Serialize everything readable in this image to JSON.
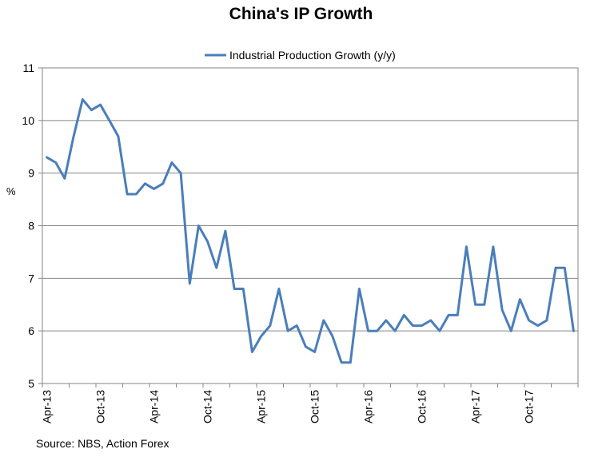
{
  "chart_data": {
    "type": "line",
    "title": "China's IP Growth",
    "xlabel": "",
    "ylabel": "%",
    "ylim": [
      5,
      11
    ],
    "yticks": [
      5,
      6,
      7,
      8,
      9,
      10,
      11
    ],
    "grid": true,
    "legend_position": "top-center",
    "x_tick_labels": [
      {
        "label": "Apr-13",
        "index": 0
      },
      {
        "label": "Oct-13",
        "index": 6
      },
      {
        "label": "Apr-14",
        "index": 12
      },
      {
        "label": "Oct-14",
        "index": 18
      },
      {
        "label": "Apr-15",
        "index": 24
      },
      {
        "label": "Oct-15",
        "index": 30
      },
      {
        "label": "Apr-16",
        "index": 36
      },
      {
        "label": "Oct-16",
        "index": 42
      },
      {
        "label": "Apr-17",
        "index": 48
      },
      {
        "label": "Oct-17",
        "index": 54
      }
    ],
    "series": [
      {
        "name": "Industrial Production Growth (y/y)",
        "color": "#4a7ebb",
        "values": [
          9.3,
          9.2,
          8.9,
          9.7,
          10.4,
          10.2,
          10.3,
          10.0,
          9.7,
          8.6,
          8.6,
          8.8,
          8.7,
          8.8,
          9.2,
          9.0,
          6.9,
          8.0,
          7.7,
          7.2,
          7.9,
          6.8,
          6.8,
          5.6,
          5.9,
          6.1,
          6.8,
          6.0,
          6.1,
          5.7,
          5.6,
          6.2,
          5.9,
          5.4,
          5.4,
          6.8,
          6.0,
          6.0,
          6.2,
          6.0,
          6.3,
          6.1,
          6.1,
          6.2,
          6.0,
          6.3,
          6.3,
          7.6,
          6.5,
          6.5,
          7.6,
          6.4,
          6.0,
          6.6,
          6.2,
          6.1,
          6.2,
          7.2,
          7.2,
          6.0
        ]
      }
    ],
    "source": "Source: NBS, Action Forex"
  }
}
